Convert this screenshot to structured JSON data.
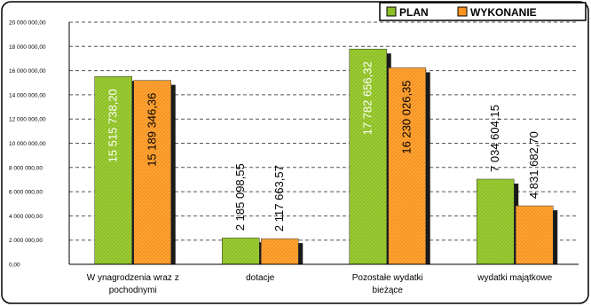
{
  "chart_data": {
    "type": "bar",
    "title": "",
    "xlabel": "",
    "ylabel": "",
    "categories": [
      [
        "W ynagrodzenia wraz z",
        "pochodnymi"
      ],
      [
        "dotacje"
      ],
      [
        "Pozostałe wydatki",
        "bieżące"
      ],
      [
        "wydatki majątkowe"
      ]
    ],
    "series": [
      {
        "name": "PLAN",
        "color": "#8cbf26",
        "values": [
          15515738.2,
          2185098.55,
          17782656.32,
          7034604.15
        ],
        "labels": [
          "15 515 738,20",
          "2 185 098,55",
          "17 782 656,32",
          "7 034 604,15"
        ]
      },
      {
        "name": "WYKONANIE",
        "color": "#f7931e",
        "values": [
          15189346.36,
          2117663.57,
          16230026.35,
          4831682.7
        ],
        "labels": [
          "15 189 346,36",
          "2 117 663,57",
          "16 230 026,35",
          "4 831 682,70"
        ]
      }
    ],
    "ylim": [
      0,
      20000000
    ],
    "yticks": [
      "0,00",
      "2 000 000,00",
      "4 000 000,00",
      "6 000 000,00",
      "8 000 000,00",
      "10 000 000,00",
      "12 000 000,00",
      "14 000 000,00",
      "16 000 000,00",
      "18 000 000,00",
      "20 000 000,00"
    ],
    "grid": true,
    "legend_position": "top-right"
  }
}
